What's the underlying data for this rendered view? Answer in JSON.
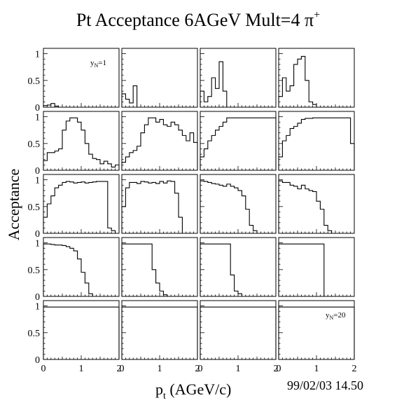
{
  "chart_data": {
    "type": "histogram-grid",
    "title_main": "Pt Acceptance 6AGeV Mult=4 ",
    "title_particle": "π",
    "title_charge": "+",
    "xlabel_main": "p",
    "xlabel_sub": "t",
    "xlabel_unit": " (AGeV/c)",
    "ylabel": "Acceptance",
    "timestamp": "99/02/03   14.50",
    "xlim": [
      0,
      2
    ],
    "ylim": [
      0,
      1.1
    ],
    "bin_width": 0.1,
    "x_ticks": [
      "0",
      "1",
      "2"
    ],
    "y_ticks": [
      "0",
      "0.5",
      "1"
    ],
    "grid": false,
    "rows": 5,
    "cols": 4,
    "annotations": [
      {
        "panel": 0,
        "prefix": "y",
        "sub": "N",
        "suffix": "=1"
      },
      {
        "panel": 19,
        "prefix": "y",
        "sub": "N",
        "suffix": "=20"
      }
    ],
    "panels": [
      [
        0.03,
        0.04,
        0.07,
        0.02,
        0,
        0,
        0,
        0,
        0,
        0,
        0,
        0,
        0,
        0,
        0,
        0,
        0,
        0,
        0,
        0
      ],
      [
        0.25,
        0.15,
        0.08,
        0.4,
        0,
        0,
        0,
        0,
        0,
        0,
        0,
        0,
        0,
        0,
        0,
        0,
        0,
        0,
        0,
        0
      ],
      [
        0.3,
        0.1,
        0.2,
        0.55,
        0.35,
        0.85,
        0.3,
        0,
        0,
        0,
        0,
        0,
        0,
        0,
        0,
        0,
        0,
        0,
        0,
        0
      ],
      [
        0.2,
        0.55,
        0.3,
        0.4,
        0.8,
        0.9,
        0.95,
        0.5,
        0.1,
        0.05,
        0,
        0,
        0,
        0,
        0,
        0,
        0,
        0,
        0,
        0
      ],
      [
        0.18,
        0.33,
        0.33,
        0.36,
        0.4,
        0.75,
        0.92,
        0.98,
        0.98,
        0.9,
        0.75,
        0.5,
        0.3,
        0.22,
        0.2,
        0.12,
        0.17,
        0.12,
        0.06,
        0.1
      ],
      [
        0.15,
        0.25,
        0.33,
        0.37,
        0.45,
        0.7,
        0.85,
        0.98,
        0.98,
        0.9,
        0.95,
        0.85,
        0.82,
        0.9,
        0.85,
        0.75,
        0.65,
        0.55,
        0.7,
        0.52
      ],
      [
        0.25,
        0.4,
        0.55,
        0.65,
        0.75,
        0.82,
        0.9,
        0.98,
        0.98,
        0.98,
        0.98,
        0.98,
        0.98,
        0.98,
        0.98,
        0.98,
        0.98,
        0.98,
        0.98,
        0.98
      ],
      [
        0.25,
        0.55,
        0.65,
        0.78,
        0.82,
        0.88,
        0.95,
        0.97,
        0.97,
        0.98,
        0.98,
        0.98,
        0.98,
        0.98,
        0.98,
        0.98,
        0.98,
        0.98,
        0.98,
        0.5
      ],
      [
        0.3,
        0.55,
        0.7,
        0.85,
        0.9,
        0.95,
        0.97,
        0.96,
        0.94,
        0.95,
        0.96,
        0.94,
        0.95,
        0.96,
        0.97,
        0.97,
        0.97,
        0.1,
        0.05,
        0
      ],
      [
        0.5,
        0.85,
        0.95,
        0.95,
        0.93,
        0.97,
        0.96,
        0.94,
        0.95,
        0.93,
        0.97,
        0.94,
        0.98,
        0.97,
        0.75,
        0.3,
        0,
        0,
        0,
        0
      ],
      [
        0.98,
        0.97,
        0.95,
        0.93,
        0.92,
        0.9,
        0.88,
        0.92,
        0.88,
        0.85,
        0.8,
        0.7,
        0.45,
        0.15,
        0.05,
        0,
        0,
        0,
        0,
        0
      ],
      [
        0.98,
        0.95,
        0.95,
        0.9,
        0.88,
        0.83,
        0.9,
        0.83,
        0.8,
        0.78,
        0.6,
        0.45,
        0.15,
        0.05,
        0,
        0,
        0,
        0,
        0,
        0
      ],
      [
        0.98,
        0.98,
        0.97,
        0.96,
        0.96,
        0.95,
        0.93,
        0.9,
        0.85,
        0.7,
        0.45,
        0.25,
        0.05,
        0,
        0,
        0,
        0,
        0,
        0,
        0
      ],
      [
        0.98,
        0.98,
        0.98,
        0.98,
        0.98,
        0.98,
        0.98,
        0.98,
        0.5,
        0.25,
        0.1,
        0.03,
        0,
        0,
        0,
        0,
        0,
        0,
        0,
        0
      ],
      [
        0.98,
        0.98,
        0.98,
        0.98,
        0.98,
        0.98,
        0.98,
        0.98,
        0.4,
        0.1,
        0.05,
        0,
        0,
        0,
        0,
        0,
        0,
        0,
        0,
        0
      ],
      [
        0.98,
        0.98,
        0.98,
        0.98,
        0.98,
        0.98,
        0.98,
        0.98,
        0.98,
        0.98,
        0.98,
        0.98,
        0,
        0,
        0,
        0,
        0,
        0,
        0,
        0
      ],
      [
        0.98,
        0.98,
        0.98,
        0.98,
        0.98,
        0.98,
        0.98,
        0.98,
        0.98,
        0.98,
        0.98,
        0.98,
        0.98,
        0.98,
        0.98,
        0.98,
        0.98,
        0.98,
        0.98,
        0.98
      ],
      [
        0.98,
        0.98,
        0.98,
        0.98,
        0.98,
        0.98,
        0.98,
        0.98,
        0.98,
        0.98,
        0.98,
        0.98,
        0.98,
        0.98,
        0.98,
        0.98,
        0.98,
        0.98,
        0.98,
        0.98
      ],
      [
        0.98,
        0.98,
        0.98,
        0.98,
        0.98,
        0.98,
        0.98,
        0.98,
        0.98,
        0.98,
        0.98,
        0.98,
        0.98,
        0.98,
        0.98,
        0.98,
        0.98,
        0.98,
        0.98,
        0.98
      ],
      [
        0.98,
        0.98,
        0.98,
        0.98,
        0.98,
        0.98,
        0.98,
        0.98,
        0.98,
        0.98,
        0.98,
        0.98,
        0.98,
        0.98,
        0.98,
        0.98,
        0.98,
        0.98,
        0.98,
        0.98
      ]
    ]
  }
}
